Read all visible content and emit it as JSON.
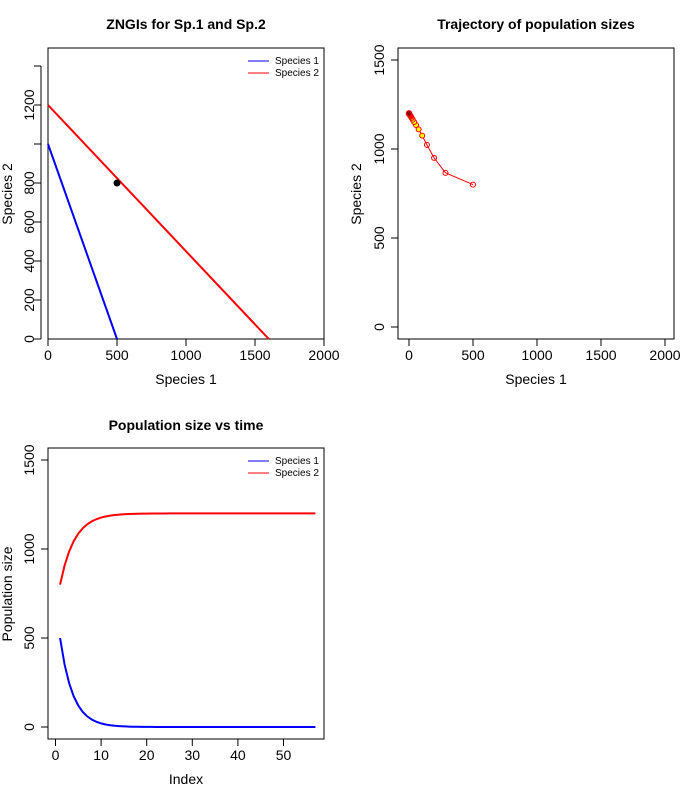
{
  "chart_data": [
    {
      "type": "line",
      "title": "ZNGIs for Sp.1 and Sp.2",
      "xlabel": "Species 1",
      "ylabel": "Species 2",
      "xlim": [
        0,
        2000
      ],
      "ylim": [
        0,
        1400
      ],
      "xticks": [
        "0",
        "500",
        "1000",
        "1500",
        "2000"
      ],
      "yticks": [
        "0",
        "200",
        "400",
        "600",
        "800",
        "1200"
      ],
      "legend": {
        "position": "top-right",
        "entries": [
          {
            "label": "Species 1",
            "color": "#0000ff"
          },
          {
            "label": "Species 2",
            "color": "#ff0000"
          }
        ]
      },
      "series": [
        {
          "name": "Species 1",
          "color": "#0000ff",
          "points": [
            [
              0,
              1000
            ],
            [
              500,
              0
            ]
          ]
        },
        {
          "name": "Species 2",
          "color": "#ff0000",
          "points": [
            [
              0,
              1200
            ],
            [
              1600,
              0
            ]
          ]
        }
      ],
      "point": {
        "x": 500,
        "y": 800,
        "color": "#000000"
      }
    },
    {
      "type": "line",
      "title": "Trajectory of population sizes",
      "xlabel": "Species 1",
      "ylabel": "Species 2",
      "xlim": [
        0,
        2000
      ],
      "ylim": [
        0,
        1500
      ],
      "xticks": [
        "0",
        "500",
        "1000",
        "1500",
        "2000"
      ],
      "yticks": [
        "0",
        "500",
        "1000",
        "1500"
      ],
      "trajectory": {
        "color": "#ff0000",
        "points": [
          [
            500,
            800
          ],
          [
            285,
            866
          ],
          [
            196,
            950
          ],
          [
            140,
            1023
          ],
          [
            103,
            1075
          ],
          [
            75,
            1110
          ],
          [
            55,
            1135
          ],
          [
            40,
            1152
          ],
          [
            29,
            1165
          ],
          [
            21,
            1175
          ],
          [
            15,
            1182
          ],
          [
            11,
            1187
          ],
          [
            8,
            1190
          ],
          [
            5,
            1193
          ],
          [
            3,
            1195
          ],
          [
            2,
            1197
          ],
          [
            1,
            1198
          ],
          [
            0,
            1199
          ],
          [
            0,
            1200
          ]
        ]
      },
      "highlight_color": "#ffff00",
      "end_color": "#8b0000"
    },
    {
      "type": "line",
      "title": "Population size vs time",
      "xlabel": "Index",
      "ylabel": "Population size",
      "xlim": [
        0,
        58
      ],
      "ylim": [
        0,
        1500
      ],
      "xticks": [
        "0",
        "10",
        "20",
        "30",
        "40",
        "50"
      ],
      "yticks": [
        "0",
        "500",
        "1000",
        "1500"
      ],
      "legend": {
        "position": "top-right",
        "entries": [
          {
            "label": "Species 1",
            "color": "#0000ff"
          },
          {
            "label": "Species 2",
            "color": "#ff0000"
          }
        ]
      },
      "series": [
        {
          "name": "Species 1",
          "color": "#0000ff",
          "n": 57,
          "start": 500,
          "end": 0,
          "decay": 0.7
        },
        {
          "name": "Species 2",
          "color": "#ff0000",
          "n": 57,
          "start": 800,
          "end": 1200,
          "decay": 0.73
        }
      ]
    }
  ]
}
